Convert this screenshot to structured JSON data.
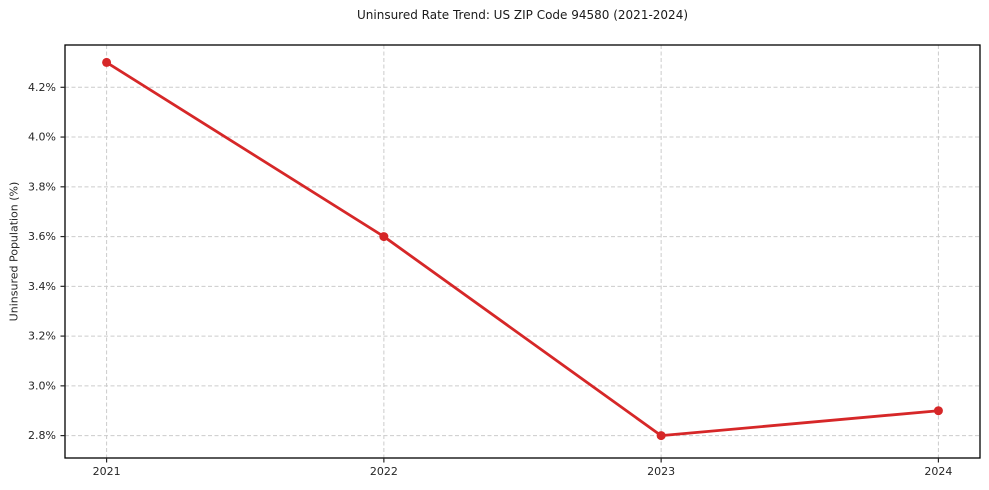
{
  "figure": {
    "title": "Uninsured Rate Trend: US ZIP Code 94580 (2021-2024)",
    "ylabel": "Uninsured Population (%)"
  },
  "chart_data": {
    "type": "line",
    "title": "Uninsured Rate Trend: US ZIP Code 94580 (2021-2024)",
    "xlabel": "",
    "ylabel": "Uninsured Population (%)",
    "x": [
      2021,
      2022,
      2023,
      2024
    ],
    "values": [
      4.3,
      3.6,
      2.8,
      2.9
    ],
    "series_name": "Uninsured rate",
    "x_tick_labels": [
      "2021",
      "2022",
      "2023",
      "2024"
    ],
    "y_ticks": [
      2.8,
      3.0,
      3.2,
      3.4,
      3.6,
      3.8,
      4.0,
      4.2
    ],
    "y_tick_labels": [
      "2.8%",
      "3.0%",
      "3.2%",
      "3.4%",
      "3.6%",
      "3.8%",
      "4.0%",
      "4.2%"
    ],
    "xlim": [
      2020.85,
      2024.15
    ],
    "ylim": [
      2.71,
      4.37
    ],
    "grid": true,
    "legend": false,
    "marker": "o",
    "colors": {
      "line": "#d62728",
      "marker": "#d62728",
      "grid": "#cccccc",
      "axis": "#000000",
      "tick": "#262626",
      "text": "#262626",
      "background": "#ffffff"
    }
  }
}
